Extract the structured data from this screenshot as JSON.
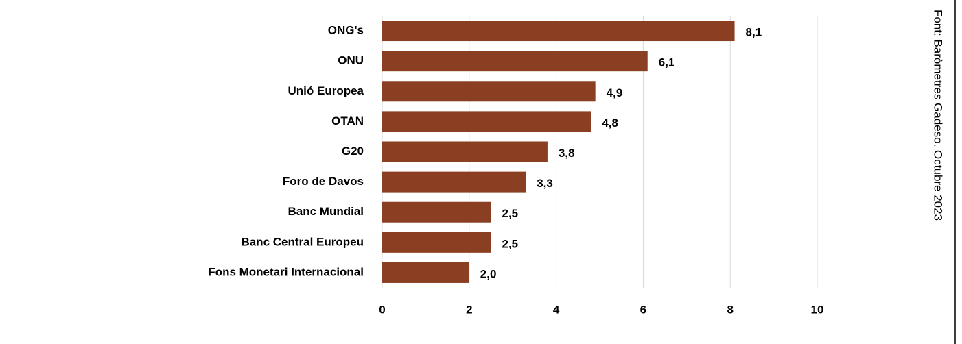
{
  "chart_data": {
    "type": "bar",
    "categories": [
      "ONG's",
      "ONU",
      "Unió Europea",
      "OTAN",
      "G20",
      "Foro de Davos",
      "Banc Mundial",
      "Banc Central Europeu",
      "Fons Monetari Internacional"
    ],
    "values": [
      8.1,
      6.1,
      4.9,
      4.8,
      3.8,
      3.3,
      2.5,
      2.5,
      2.0
    ],
    "value_labels": [
      "8,1",
      "6,1",
      "4,9",
      "4,8",
      "3,8",
      "3,3",
      "2,5",
      "2,5",
      "2,0"
    ],
    "color": "#8b3f22",
    "xlim": [
      0,
      10
    ],
    "xticks": [
      0,
      2,
      4,
      6,
      8,
      10
    ],
    "grid": true,
    "source": "Font: Baròmetres Gadeso. Octubre 2023"
  }
}
